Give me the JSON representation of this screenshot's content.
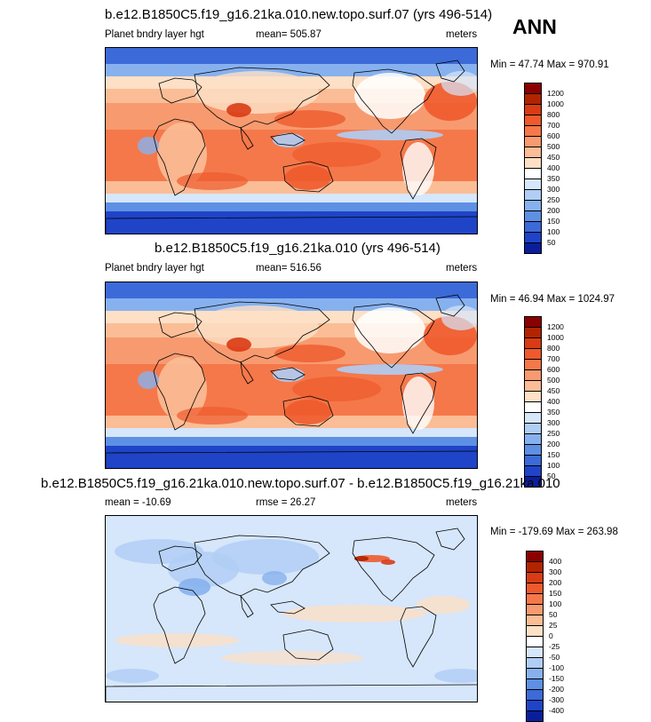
{
  "season": "ANN",
  "panels": [
    {
      "title": "b.e12.B1850C5.f19_g16.21ka.010.new.topo.surf.07 (yrs 496-514)",
      "left_label": "Planet bndry layer hgt",
      "center_label": "mean= 505.87",
      "right_label": "meters",
      "minmax": "Min =  47.74 Max = 970.91",
      "colorbar": {
        "labels": [
          "1200",
          "1000",
          "800",
          "700",
          "600",
          "500",
          "450",
          "400",
          "350",
          "300",
          "250",
          "200",
          "150",
          "100",
          "50"
        ],
        "colors": [
          "#8b0000",
          "#b22400",
          "#d93b14",
          "#ee5a2c",
          "#f5784a",
          "#f89a6f",
          "#fbbd96",
          "#fde0c6",
          "#ffffff",
          "#d6e6fb",
          "#afcdf5",
          "#87b1ee",
          "#5e90e4",
          "#3c6ad8",
          "#1f44c8",
          "#0a1e9c"
        ]
      },
      "map_style": "abs"
    },
    {
      "title": "b.e12.B1850C5.f19_g16.21ka.010 (yrs 496-514)",
      "left_label": "Planet bndry layer hgt",
      "center_label": "mean= 516.56",
      "right_label": "meters",
      "minmax": "Min =  46.94 Max = 1024.97",
      "colorbar": {
        "labels": [
          "1200",
          "1000",
          "800",
          "700",
          "600",
          "500",
          "450",
          "400",
          "350",
          "300",
          "250",
          "200",
          "150",
          "100",
          "50"
        ],
        "colors": [
          "#8b0000",
          "#b22400",
          "#d93b14",
          "#ee5a2c",
          "#f5784a",
          "#f89a6f",
          "#fbbd96",
          "#fde0c6",
          "#ffffff",
          "#d6e6fb",
          "#afcdf5",
          "#87b1ee",
          "#5e90e4",
          "#3c6ad8",
          "#1f44c8",
          "#0a1e9c"
        ]
      },
      "map_style": "abs"
    },
    {
      "title": "b.e12.B1850C5.f19_g16.21ka.010.new.topo.surf.07 - b.e12.B1850C5.f19_g16.21ka.010",
      "left_label": "mean = -10.69",
      "center_label": "rmse =  26.27",
      "right_label": "meters",
      "minmax": "Min = -179.69 Max = 263.98",
      "colorbar": {
        "labels": [
          "400",
          "300",
          "200",
          "150",
          "100",
          "50",
          "25",
          "0",
          "-25",
          "-50",
          "-100",
          "-150",
          "-200",
          "-300",
          "-400"
        ],
        "colors": [
          "#8b0000",
          "#b22400",
          "#d93b14",
          "#ee5a2c",
          "#f5784a",
          "#f89a6f",
          "#fbbd96",
          "#fde0c6",
          "#ffffff",
          "#d6e6fb",
          "#afcdf5",
          "#87b1ee",
          "#5e90e4",
          "#3c6ad8",
          "#1f44c8",
          "#0a1e9c"
        ]
      },
      "map_style": "diff"
    }
  ]
}
